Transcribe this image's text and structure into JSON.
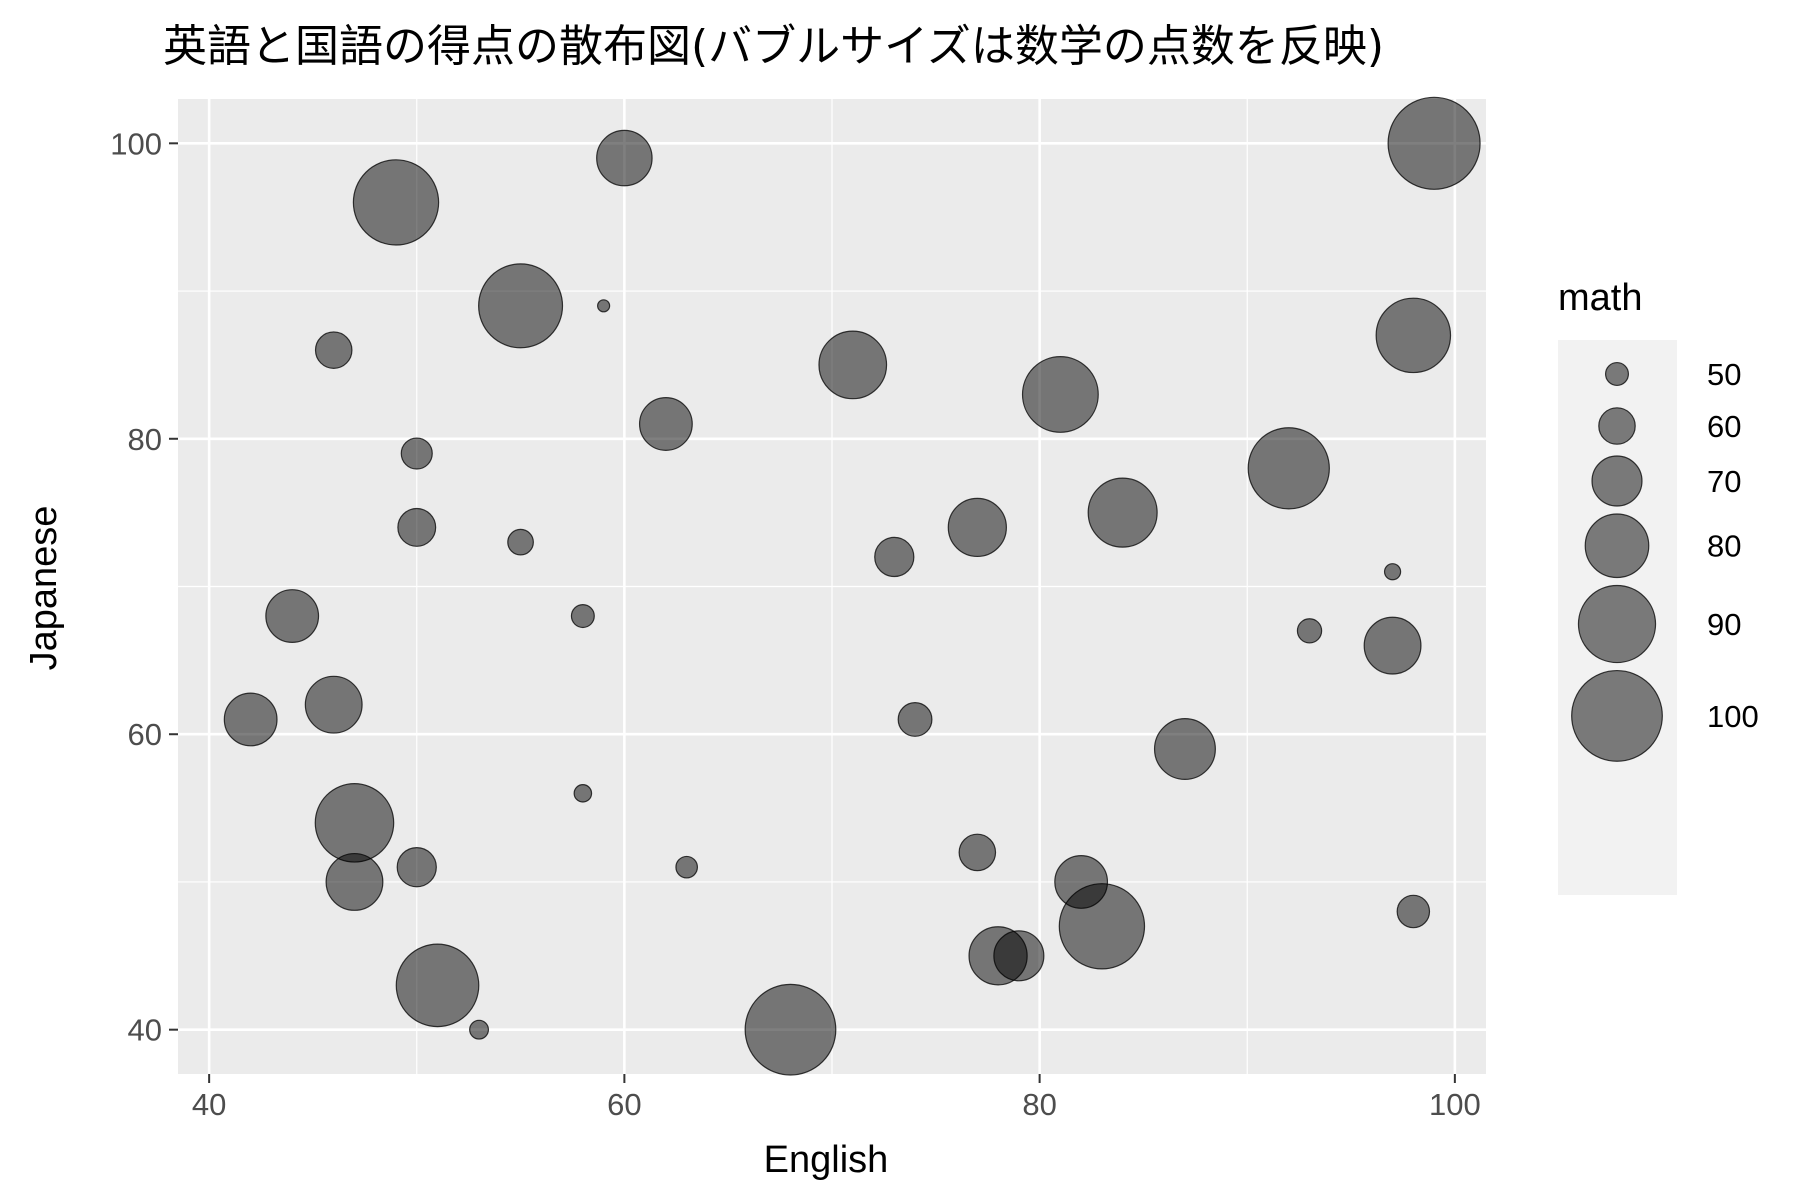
{
  "chart_data": {
    "type": "scatter",
    "title": "英語と国語の得点の散布図(バブルサイズは数学の点数を反映)",
    "xlabel": "English",
    "ylabel": "Japanese",
    "xlim": [
      38.5,
      101.5
    ],
    "ylim": [
      37,
      103
    ],
    "x_ticks": [
      40,
      60,
      80,
      100
    ],
    "y_ticks": [
      40,
      60,
      80,
      100
    ],
    "size_variable": "math",
    "size_range": [
      42,
      101
    ],
    "legend": {
      "title": "math",
      "placement": "right",
      "values": [
        50,
        60,
        70,
        80,
        90,
        100
      ]
    },
    "point_color": "#000000",
    "point_alpha": 0.5,
    "panel_background": "#ebebeb",
    "grid_color": "#ffffff",
    "grid": true,
    "points": [
      {
        "x": 99,
        "y": 100,
        "size": 101
      },
      {
        "x": 60,
        "y": 99,
        "size": 74
      },
      {
        "x": 49,
        "y": 96,
        "size": 96
      },
      {
        "x": 55,
        "y": 89,
        "size": 95
      },
      {
        "x": 59,
        "y": 89,
        "size": 42
      },
      {
        "x": 98,
        "y": 87,
        "size": 88
      },
      {
        "x": 46,
        "y": 86,
        "size": 60
      },
      {
        "x": 71,
        "y": 85,
        "size": 83
      },
      {
        "x": 81,
        "y": 83,
        "size": 89
      },
      {
        "x": 62,
        "y": 81,
        "size": 72
      },
      {
        "x": 50,
        "y": 79,
        "size": 56
      },
      {
        "x": 92,
        "y": 78,
        "size": 93
      },
      {
        "x": 84,
        "y": 75,
        "size": 84
      },
      {
        "x": 50,
        "y": 74,
        "size": 61
      },
      {
        "x": 77,
        "y": 74,
        "size": 76
      },
      {
        "x": 55,
        "y": 73,
        "size": 52
      },
      {
        "x": 73,
        "y": 72,
        "size": 62
      },
      {
        "x": 97,
        "y": 71,
        "size": 45
      },
      {
        "x": 44,
        "y": 68,
        "size": 72
      },
      {
        "x": 58,
        "y": 68,
        "size": 50
      },
      {
        "x": 93,
        "y": 67,
        "size": 51
      },
      {
        "x": 97,
        "y": 66,
        "size": 75
      },
      {
        "x": 46,
        "y": 62,
        "size": 75
      },
      {
        "x": 42,
        "y": 61,
        "size": 72
      },
      {
        "x": 74,
        "y": 61,
        "size": 58
      },
      {
        "x": 87,
        "y": 59,
        "size": 78
      },
      {
        "x": 58,
        "y": 56,
        "size": 46
      },
      {
        "x": 47,
        "y": 54,
        "size": 91
      },
      {
        "x": 77,
        "y": 52,
        "size": 60
      },
      {
        "x": 50,
        "y": 51,
        "size": 62
      },
      {
        "x": 63,
        "y": 51,
        "size": 49
      },
      {
        "x": 47,
        "y": 50,
        "size": 75
      },
      {
        "x": 82,
        "y": 50,
        "size": 72
      },
      {
        "x": 98,
        "y": 48,
        "size": 57
      },
      {
        "x": 83,
        "y": 47,
        "size": 96
      },
      {
        "x": 78,
        "y": 45,
        "size": 76
      },
      {
        "x": 79,
        "y": 45,
        "size": 70
      },
      {
        "x": 51,
        "y": 43,
        "size": 94
      },
      {
        "x": 53,
        "y": 40,
        "size": 47
      },
      {
        "x": 68,
        "y": 40,
        "size": 100
      }
    ]
  }
}
